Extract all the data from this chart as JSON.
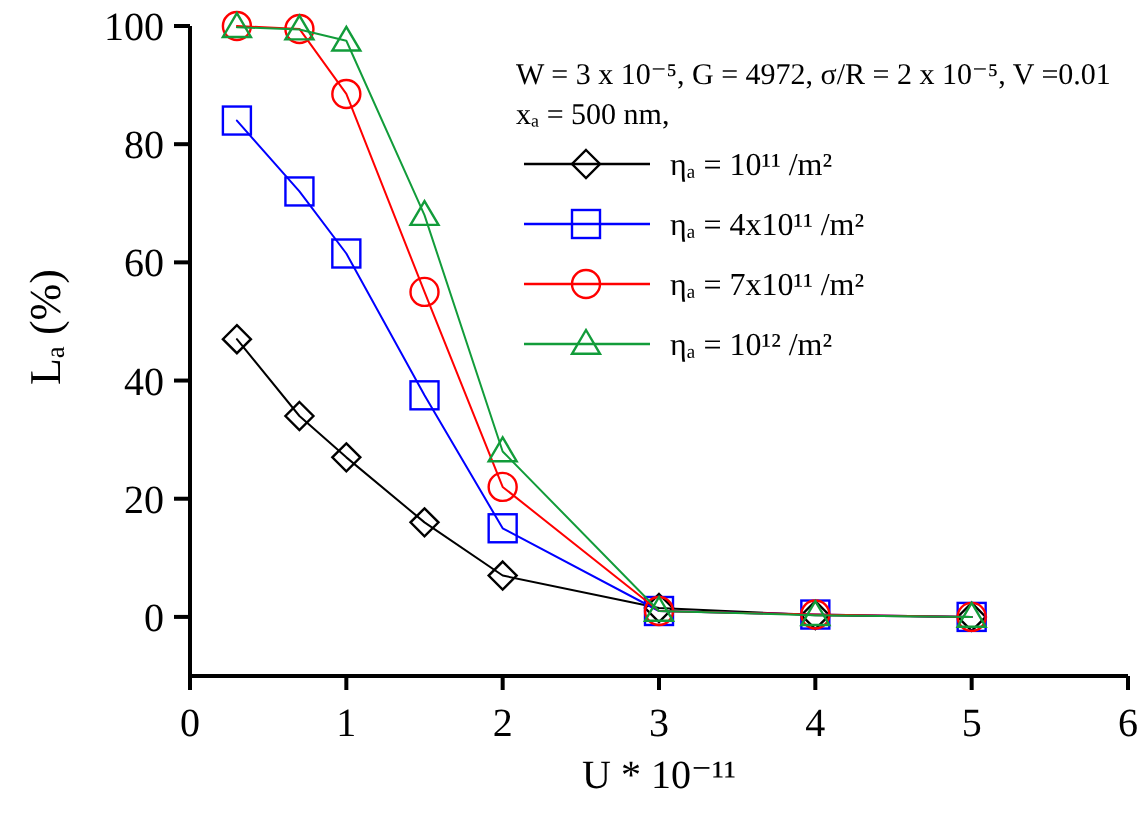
{
  "chart_data": {
    "type": "line",
    "xlabel": "U * 10⁻¹¹",
    "ylabel": "Lₐ (%)",
    "annotations": [
      "W = 3 x 10⁻⁵, G = 4972, σ/R = 2 x 10⁻⁵, V =0.01",
      "xₐ = 500 nm,"
    ],
    "x": [
      0.3,
      0.7,
      1,
      1.5,
      2,
      3,
      4,
      5
    ],
    "series": [
      {
        "name": "ηₐ = 10¹¹ /m²",
        "color": "#000000",
        "marker": "diamond",
        "values": [
          47,
          34,
          27,
          16,
          7,
          1.5,
          0.3,
          0
        ]
      },
      {
        "name": "ηₐ = 4x10¹¹ /m²",
        "color": "#0000ff",
        "marker": "square",
        "values": [
          84,
          72,
          61.5,
          37.5,
          15,
          1,
          0.4,
          0
        ]
      },
      {
        "name": "ηₐ = 7x10¹¹ /m²",
        "color": "#ff0000",
        "marker": "circle",
        "values": [
          100,
          99.5,
          88.5,
          55,
          22,
          1,
          0.4,
          0
        ]
      },
      {
        "name": "ηₐ = 10¹² /m²",
        "color": "#129c3a",
        "marker": "triangle",
        "values": [
          99.8,
          99.4,
          97.5,
          68,
          28,
          1,
          0.3,
          0
        ]
      }
    ],
    "xlim": [
      0,
      6
    ],
    "xticks": [
      0,
      1,
      2,
      3,
      4,
      5,
      6
    ],
    "ylim": [
      -10,
      100
    ],
    "yticks": [
      0,
      20,
      40,
      60,
      80,
      100
    ],
    "legend": "top right"
  }
}
